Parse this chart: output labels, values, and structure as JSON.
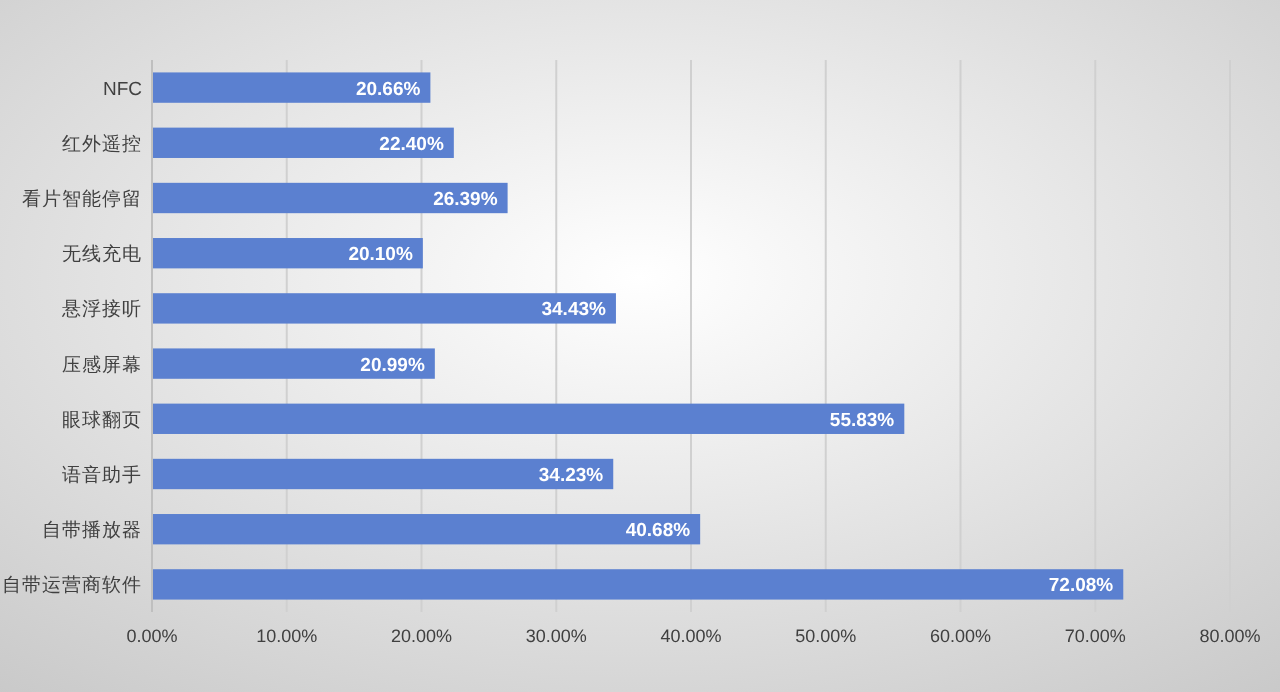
{
  "chart_data": {
    "type": "bar",
    "orientation": "horizontal",
    "categories": [
      "NFC",
      "红外遥控",
      "看片智能停留",
      "无线充电",
      "悬浮接听",
      "压感屏幕",
      "眼球翻页",
      "语音助手",
      "自带播放器",
      "自带运营商软件"
    ],
    "values": [
      20.66,
      22.4,
      26.39,
      20.1,
      34.43,
      20.99,
      55.83,
      34.23,
      40.68,
      72.08
    ],
    "value_labels": [
      "20.66%",
      "22.40%",
      "26.39%",
      "20.10%",
      "34.43%",
      "20.99%",
      "55.83%",
      "34.23%",
      "40.68%",
      "72.08%"
    ],
    "color": "#5b80d0",
    "xlim": [
      0,
      80
    ],
    "xticks": [
      {
        "value": 0,
        "label": "0.00%"
      },
      {
        "value": 10,
        "label": "10.00%"
      },
      {
        "value": 20,
        "label": "20.00%"
      },
      {
        "value": 30,
        "label": "30.00%"
      },
      {
        "value": 40,
        "label": "40.00%"
      },
      {
        "value": 50,
        "label": "50.00%"
      },
      {
        "value": 60,
        "label": "60.00%"
      },
      {
        "value": 70,
        "label": "70.00%"
      },
      {
        "value": 80,
        "label": "80.00%"
      }
    ],
    "grid": "x"
  }
}
